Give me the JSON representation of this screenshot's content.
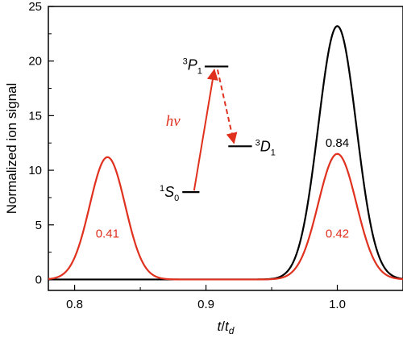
{
  "chart_data": {
    "type": "line",
    "xlabel": {
      "main": "t",
      "sep": "/",
      "main2": "t",
      "sub": "d"
    },
    "ylabel": "Normalized ion signal",
    "xlim": [
      0.78,
      1.05
    ],
    "ylim": [
      -1,
      25
    ],
    "xticks": [
      0.8,
      0.9,
      1.0
    ],
    "xtick_labels": [
      "0.8",
      "0.9",
      "1.0"
    ],
    "xminor": [
      0.85,
      0.95
    ],
    "yticks": [
      0,
      5,
      10,
      15,
      20,
      25
    ],
    "ytick_labels": [
      "0",
      "5",
      "10",
      "15",
      "20",
      "25"
    ],
    "yminor": [
      2.5,
      7.5,
      12.5,
      17.5,
      22.5
    ],
    "grid": false,
    "series": [
      {
        "color": "#000000",
        "peaks": [
          {
            "center": 1.0,
            "height": 23.2,
            "sigma": 0.0145
          }
        ]
      },
      {
        "color": "#e0301e",
        "peaks": [
          {
            "center": 0.825,
            "height": 11.2,
            "sigma": 0.0135
          },
          {
            "center": 1.0,
            "height": 11.5,
            "sigma": 0.0145
          }
        ]
      }
    ],
    "annotations": [
      {
        "text": "0.84",
        "x": 1.0,
        "y": 12.5,
        "color": "#000000"
      },
      {
        "text": "0.41",
        "x": 0.825,
        "y": 4.2,
        "color": "#e0301e"
      },
      {
        "text": "0.42",
        "x": 1.0,
        "y": 4.2,
        "color": "#e0301e"
      }
    ],
    "inset": {
      "levels": [
        {
          "id": "S0",
          "pre": "1",
          "letter": "S",
          "sub": "0",
          "y": 8.0,
          "x0": 0.882,
          "x1": 0.895
        },
        {
          "id": "P1",
          "pre": "3",
          "letter": "P",
          "sub": "1",
          "y": 19.5,
          "x0": 0.899,
          "x1": 0.917
        },
        {
          "id": "D1",
          "pre": "3",
          "letter": "D",
          "sub": "1",
          "y": 12.2,
          "x0": 0.917,
          "x1": 0.935
        }
      ],
      "excitation_label": "hν",
      "color": "#e0301e"
    }
  }
}
